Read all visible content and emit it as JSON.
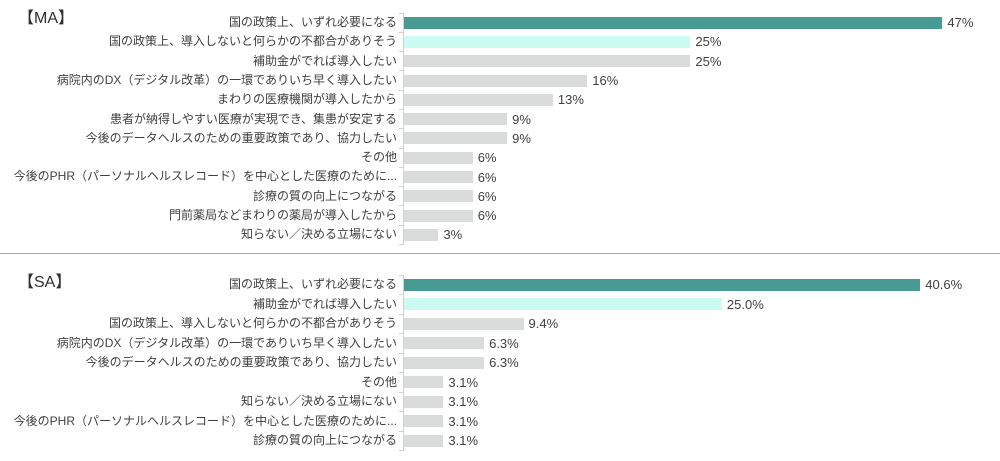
{
  "page": {
    "background": "#ffffff",
    "divider_color": "#a6a6a6",
    "axis_color": "#d0d0d0"
  },
  "chart_data": [
    {
      "type": "bar",
      "orientation": "horizontal",
      "title": "【MA】",
      "categories": [
        "国の政策上、いずれ必要になる",
        "国の政策上、導入しないと何らかの不都合がありそう",
        "補助金がでれば導入したい",
        "病院内のDX（デジタル改革）の一環でありいち早く導入したい",
        "まわりの医療機関が導入したから",
        "患者が納得しやすい医療が実現でき、集患が安定する",
        "今後のデータヘルスのための重要政策であり、協力したい",
        "その他",
        "今後のPHR（パーソナルヘルスレコード）を中心とした医療のために...",
        "診療の質の向上につながる",
        "門前薬局などまわりの薬局が導入したから",
        "知らない／決める立場にない"
      ],
      "values": [
        47,
        25,
        25,
        16,
        13,
        9,
        9,
        6,
        6,
        6,
        6,
        3
      ],
      "value_labels": [
        "47%",
        "25%",
        "25%",
        "16%",
        "13%",
        "9%",
        "9%",
        "6%",
        "6%",
        "6%",
        "6%",
        "3%"
      ],
      "bar_colors": [
        "#489b92",
        "#ccfbf4",
        "#dadbdb",
        "#dadbdb",
        "#dadbdb",
        "#dadbdb",
        "#dadbdb",
        "#dadbdb",
        "#dadbdb",
        "#dadbdb",
        "#dadbdb",
        "#dadbdb"
      ],
      "xlabel": "",
      "ylabel": "",
      "xlim": [
        0,
        51.5
      ],
      "grid": false,
      "legend": false,
      "label_color": "#3f3f3f",
      "value_color": "#404040"
    },
    {
      "type": "bar",
      "orientation": "horizontal",
      "title": "【SA】",
      "categories": [
        "国の政策上、いずれ必要になる",
        "補助金がでれば導入したい",
        "国の政策上、導入しないと何らかの不都合がありそう",
        "病院内のDX（デジタル改革）の一環でありいち早く導入したい",
        "今後のデータヘルスのための重要政策であり、協力したい",
        "その他",
        "知らない／決める立場にない",
        "今後のPHR（パーソナルヘルスレコード）を中心とした医療のために...",
        "診療の質の向上につながる"
      ],
      "values": [
        40.6,
        25.0,
        9.4,
        6.3,
        6.3,
        3.1,
        3.1,
        3.1,
        3.1
      ],
      "value_labels": [
        "40.6%",
        "25.0%",
        "9.4%",
        "6.3%",
        "6.3%",
        "3.1%",
        "3.1%",
        "3.1%",
        "3.1%"
      ],
      "bar_colors": [
        "#489b92",
        "#ccfbf4",
        "#dadbdb",
        "#dadbdb",
        "#dadbdb",
        "#dadbdb",
        "#dadbdb",
        "#dadbdb",
        "#dadbdb"
      ],
      "xlabel": "",
      "ylabel": "",
      "xlim": [
        0,
        46.4
      ],
      "grid": false,
      "legend": false,
      "label_color": "#3f3f3f",
      "value_color": "#404040"
    }
  ]
}
